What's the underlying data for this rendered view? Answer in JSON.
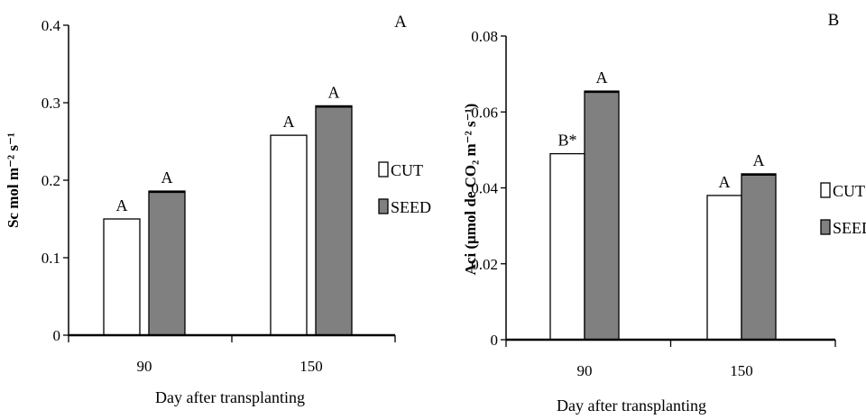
{
  "colors": {
    "CUT": "#ffffff",
    "SEED": "#808080",
    "axis": "#000000"
  },
  "chart_data": [
    {
      "type": "bar",
      "panel_label": "A",
      "categories": [
        "90",
        "150"
      ],
      "series": [
        {
          "name": "CUT",
          "values": [
            0.15,
            0.258
          ],
          "letters": [
            "A",
            "A"
          ]
        },
        {
          "name": "SEED",
          "values": [
            0.186,
            0.296
          ],
          "letters": [
            "A",
            "A"
          ]
        }
      ],
      "xlabel": "Day after transplanting",
      "ylabel": "Sc mol m⁻² s⁻¹",
      "ylim": [
        0,
        0.4
      ],
      "yticks": [
        "0",
        "0.1",
        "0.2",
        "0.3",
        "0.4"
      ],
      "grid": false,
      "legend": "right"
    },
    {
      "type": "bar",
      "panel_label": "B",
      "categories": [
        "90",
        "150"
      ],
      "series": [
        {
          "name": "CUT",
          "values": [
            0.049,
            0.038
          ],
          "letters": [
            "B*",
            "A"
          ]
        },
        {
          "name": "SEED",
          "values": [
            0.0655,
            0.0437
          ],
          "letters": [
            "A",
            "A"
          ]
        }
      ],
      "xlabel": "Day after transplanting",
      "ylabel": "Aci (μmol de CO₂ m⁻² s⁻¹)",
      "ylim": [
        0,
        0.08
      ],
      "yticks": [
        "0",
        "0.02",
        "0.04",
        "0.06",
        "0.08"
      ],
      "grid": false,
      "legend": "right"
    }
  ]
}
